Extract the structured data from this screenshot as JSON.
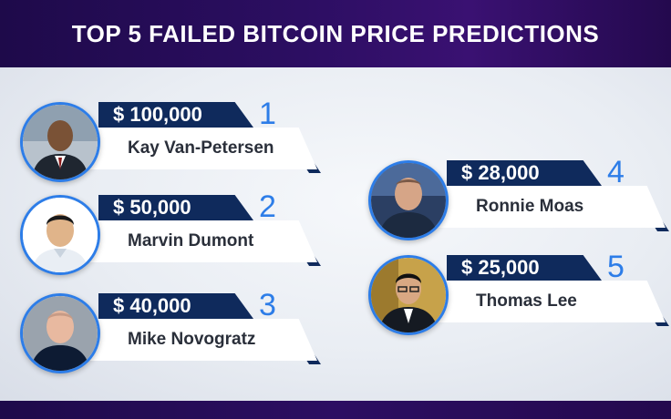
{
  "header": {
    "title": "TOP 5 FAILED BITCOIN PRICE PREDICTIONS"
  },
  "colors": {
    "navy": "#0f2a5c",
    "accent_blue": "#2d7de8",
    "header_purple": "#2c0e62"
  },
  "predictions": [
    {
      "rank": "1",
      "price": "$ 100,000",
      "name": "Kay Van-Petersen"
    },
    {
      "rank": "2",
      "price": "$ 50,000",
      "name": "Marvin Dumont"
    },
    {
      "rank": "3",
      "price": "$ 40,000",
      "name": "Mike Novogratz"
    },
    {
      "rank": "4",
      "price": "$ 28,000",
      "name": "Ronnie Moas"
    },
    {
      "rank": "5",
      "price": "$ 25,000",
      "name": "Thomas Lee"
    }
  ]
}
